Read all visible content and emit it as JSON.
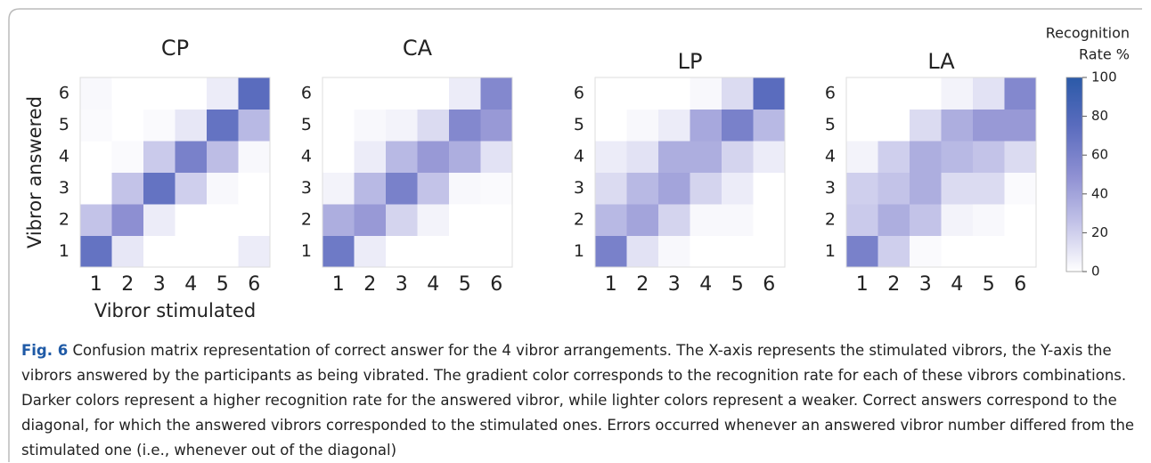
{
  "chart_data": [
    {
      "type": "heatmap",
      "title": "CP",
      "x_label": "Vibror stimulated",
      "y_label": "Vibror answered",
      "x": [
        1,
        2,
        3,
        4,
        5,
        6
      ],
      "y": [
        1,
        2,
        3,
        4,
        5,
        6
      ],
      "z": [
        [
          70,
          10,
          0,
          0,
          0,
          8
        ],
        [
          25,
          50,
          8,
          0,
          0,
          0
        ],
        [
          0,
          25,
          70,
          20,
          3,
          0
        ],
        [
          0,
          2,
          22,
          60,
          28,
          3
        ],
        [
          2,
          0,
          2,
          10,
          70,
          30
        ],
        [
          3,
          0,
          0,
          0,
          8,
          75
        ]
      ]
    },
    {
      "type": "heatmap",
      "title": "CA",
      "x": [
        1,
        2,
        3,
        4,
        5,
        6
      ],
      "y": [
        1,
        2,
        3,
        4,
        5,
        6
      ],
      "z": [
        [
          65,
          8,
          0,
          0,
          0,
          0
        ],
        [
          35,
          45,
          18,
          5,
          0,
          0
        ],
        [
          5,
          30,
          60,
          25,
          3,
          2
        ],
        [
          0,
          8,
          30,
          45,
          35,
          12
        ],
        [
          0,
          3,
          5,
          15,
          55,
          45
        ],
        [
          0,
          0,
          0,
          0,
          8,
          55
        ]
      ]
    },
    {
      "type": "heatmap",
      "title": "LP",
      "x": [
        1,
        2,
        3,
        4,
        5,
        6
      ],
      "y": [
        1,
        2,
        3,
        4,
        5,
        6
      ],
      "z": [
        [
          60,
          12,
          3,
          0,
          0,
          0
        ],
        [
          30,
          40,
          18,
          3,
          3,
          0
        ],
        [
          15,
          30,
          40,
          18,
          8,
          0
        ],
        [
          8,
          12,
          35,
          35,
          18,
          8
        ],
        [
          0,
          3,
          8,
          38,
          60,
          30
        ],
        [
          0,
          0,
          0,
          3,
          15,
          75
        ]
      ]
    },
    {
      "type": "heatmap",
      "title": "LA",
      "x": [
        1,
        2,
        3,
        4,
        5,
        6
      ],
      "y": [
        1,
        2,
        3,
        4,
        5,
        6
      ],
      "z": [
        [
          60,
          20,
          2,
          0,
          0,
          0
        ],
        [
          22,
          35,
          25,
          5,
          3,
          0
        ],
        [
          20,
          25,
          35,
          15,
          15,
          2
        ],
        [
          5,
          20,
          35,
          30,
          25,
          15
        ],
        [
          0,
          0,
          15,
          35,
          45,
          45
        ],
        [
          0,
          0,
          0,
          5,
          12,
          55
        ]
      ]
    }
  ],
  "colorbar": {
    "title_lines": [
      "Recognition",
      "Rate %"
    ],
    "lim": [
      0,
      100
    ],
    "ticks": [
      0,
      20,
      40,
      60,
      80,
      100
    ],
    "colorscale": [
      [
        0,
        "#ffffff"
      ],
      [
        25,
        "#c3c3e8"
      ],
      [
        50,
        "#8d8fd2"
      ],
      [
        75,
        "#5a6cbe"
      ],
      [
        100,
        "#2b5aa8"
      ]
    ]
  },
  "caption": {
    "label": "Fig. 6",
    "text": "Confusion matrix representation of correct answer for the 4 vibror arrangements. The X-axis represents the stimulated vibrors, the Y-axis the vibrors answered by the participants as being vibrated. The gradient color corresponds to the recognition rate for each of these vibrors combinations. Darker colors represent a higher recognition rate for the answered vibror, while lighter colors represent a weaker. Correct answers correspond to the diagonal, for which the answered vibrors corresponded to the stimulated ones. Errors occurred whenever an answered vibror number differed from the stimulated one (i.e., whenever out of the diagonal)"
  }
}
